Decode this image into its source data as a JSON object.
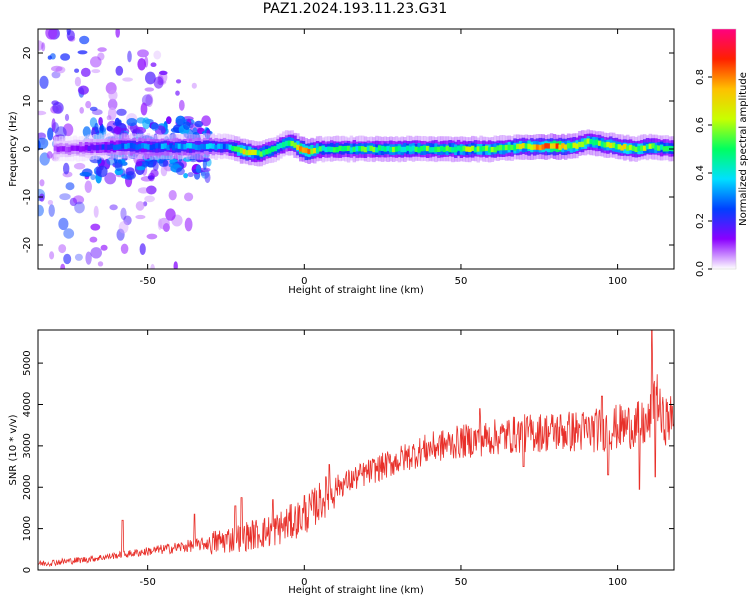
{
  "title": "PAZ1.2024.193.11.23.G31",
  "chart_data": [
    {
      "type": "heatmap",
      "xlabel": "Height of straight line (km)",
      "ylabel": "Frequency (Hz)",
      "xlim": [
        -85,
        118
      ],
      "ylim": [
        -25,
        25
      ],
      "xticks": [
        -50,
        0,
        50,
        100
      ],
      "yticks": [
        -20,
        -10,
        0,
        10,
        20
      ],
      "colorbar": {
        "label": "Normalized spectral amplitude",
        "range": [
          0,
          1
        ],
        "ticks": [
          0.0,
          0.2,
          0.4,
          0.6,
          0.8
        ],
        "colormap": "gist_rainbow_r-like",
        "colors": [
          "#ffffff",
          "#8a00ff",
          "#0040ff",
          "#00e0ff",
          "#00ff60",
          "#c8ff00",
          "#ffc000",
          "#ff2000",
          "#ff0080"
        ]
      },
      "ridge": {
        "x": [
          -75,
          -65,
          -55,
          -45,
          -35,
          -25,
          -20,
          -15,
          -10,
          -5,
          0,
          5,
          10,
          20,
          30,
          40,
          50,
          60,
          70,
          80,
          85,
          90,
          95,
          100,
          105,
          110,
          118
        ],
        "freq": [
          0.0,
          0.5,
          0.5,
          0.5,
          0.5,
          0.5,
          -0.5,
          -1.0,
          0.0,
          1.5,
          -0.5,
          0.0,
          0.0,
          0.0,
          0.0,
          0.0,
          0.0,
          0.0,
          0.5,
          0.5,
          0.5,
          1.5,
          1.0,
          0.5,
          0.0,
          0.5,
          0.0
        ],
        "amplitude": [
          0.1,
          0.2,
          0.3,
          0.3,
          0.35,
          0.3,
          0.7,
          0.55,
          0.4,
          0.5,
          0.85,
          0.45,
          0.45,
          0.5,
          0.5,
          0.5,
          0.55,
          0.55,
          0.6,
          0.85,
          0.6,
          0.6,
          0.55,
          0.6,
          0.6,
          0.55,
          0.5
        ]
      },
      "noise_extent_x": [
        -85,
        -35
      ]
    },
    {
      "type": "line",
      "xlabel": "Height of straight line (km)",
      "ylabel": "SNR (10 * v/v)",
      "xlim": [
        -85,
        118
      ],
      "ylim": [
        0,
        5800
      ],
      "xticks": [
        -50,
        0,
        50,
        100
      ],
      "yticks": [
        0,
        1000,
        2000,
        3000,
        4000,
        5000
      ],
      "color": "#e8302a",
      "trend": {
        "x": [
          -85,
          -70,
          -60,
          -50,
          -40,
          -30,
          -20,
          -10,
          0,
          5,
          10,
          20,
          30,
          40,
          50,
          60,
          70,
          80,
          90,
          100,
          105,
          110,
          112,
          114,
          118
        ],
        "y": [
          150,
          250,
          350,
          450,
          550,
          650,
          800,
          950,
          1300,
          1650,
          2000,
          2350,
          2650,
          2950,
          3100,
          3200,
          3300,
          3350,
          3350,
          3450,
          3500,
          3500,
          4500,
          3600,
          3650
        ]
      },
      "spikes": [
        {
          "x": -58,
          "y": 1200
        },
        {
          "x": -35,
          "y": 1350
        },
        {
          "x": -22,
          "y": 1550
        },
        {
          "x": -20,
          "y": 1750
        },
        {
          "x": -10,
          "y": 1700
        },
        {
          "x": 0,
          "y": 1800
        },
        {
          "x": 8,
          "y": 2550
        },
        {
          "x": 56,
          "y": 3900
        },
        {
          "x": 70,
          "y": 2500
        },
        {
          "x": 95,
          "y": 4200
        },
        {
          "x": 97,
          "y": 2300
        },
        {
          "x": 107,
          "y": 1950
        },
        {
          "x": 111,
          "y": 5800
        },
        {
          "x": 112,
          "y": 2250
        }
      ]
    }
  ]
}
